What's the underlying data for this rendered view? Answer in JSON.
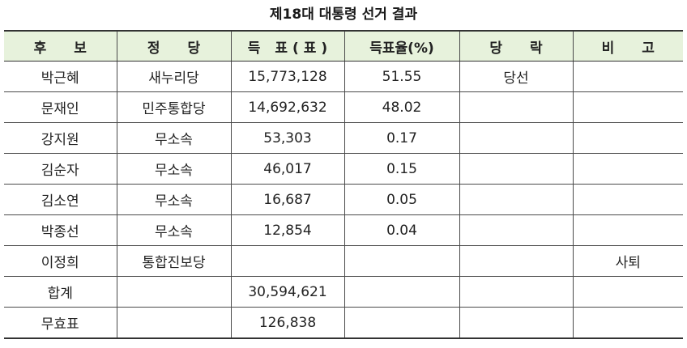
{
  "title": "제18대 대통령 선거 결과",
  "headers": [
    "후 보",
    "정 당",
    "득 표(표)",
    "득표율(%)",
    "당 락",
    "비 고"
  ],
  "rows": [
    [
      "박근혜",
      "새누리당",
      "15,773,128",
      "51.55",
      "당선",
      ""
    ],
    [
      "문재인",
      "민주통합당",
      "14,692,632",
      "48.02",
      "",
      ""
    ],
    [
      "강지원",
      "무소속",
      "53,303",
      "0.17",
      "",
      ""
    ],
    [
      "김순자",
      "무소속",
      "46,017",
      "0.15",
      "",
      ""
    ],
    [
      "김소연",
      "무소속",
      "16,687",
      "0.05",
      "",
      ""
    ],
    [
      "박종선",
      "무소속",
      "12,854",
      "0.04",
      "",
      ""
    ],
    [
      "이정희",
      "통합진보당",
      "",
      "",
      "",
      "사퇴"
    ],
    [
      "합계",
      "",
      "30,594,621",
      "",
      "",
      ""
    ],
    [
      "무효표",
      "",
      "126,838",
      "",
      "",
      ""
    ]
  ],
  "colors": {
    "header_bg": "#e7f2dc",
    "border": "#4a4a4a",
    "text": "#222222"
  }
}
